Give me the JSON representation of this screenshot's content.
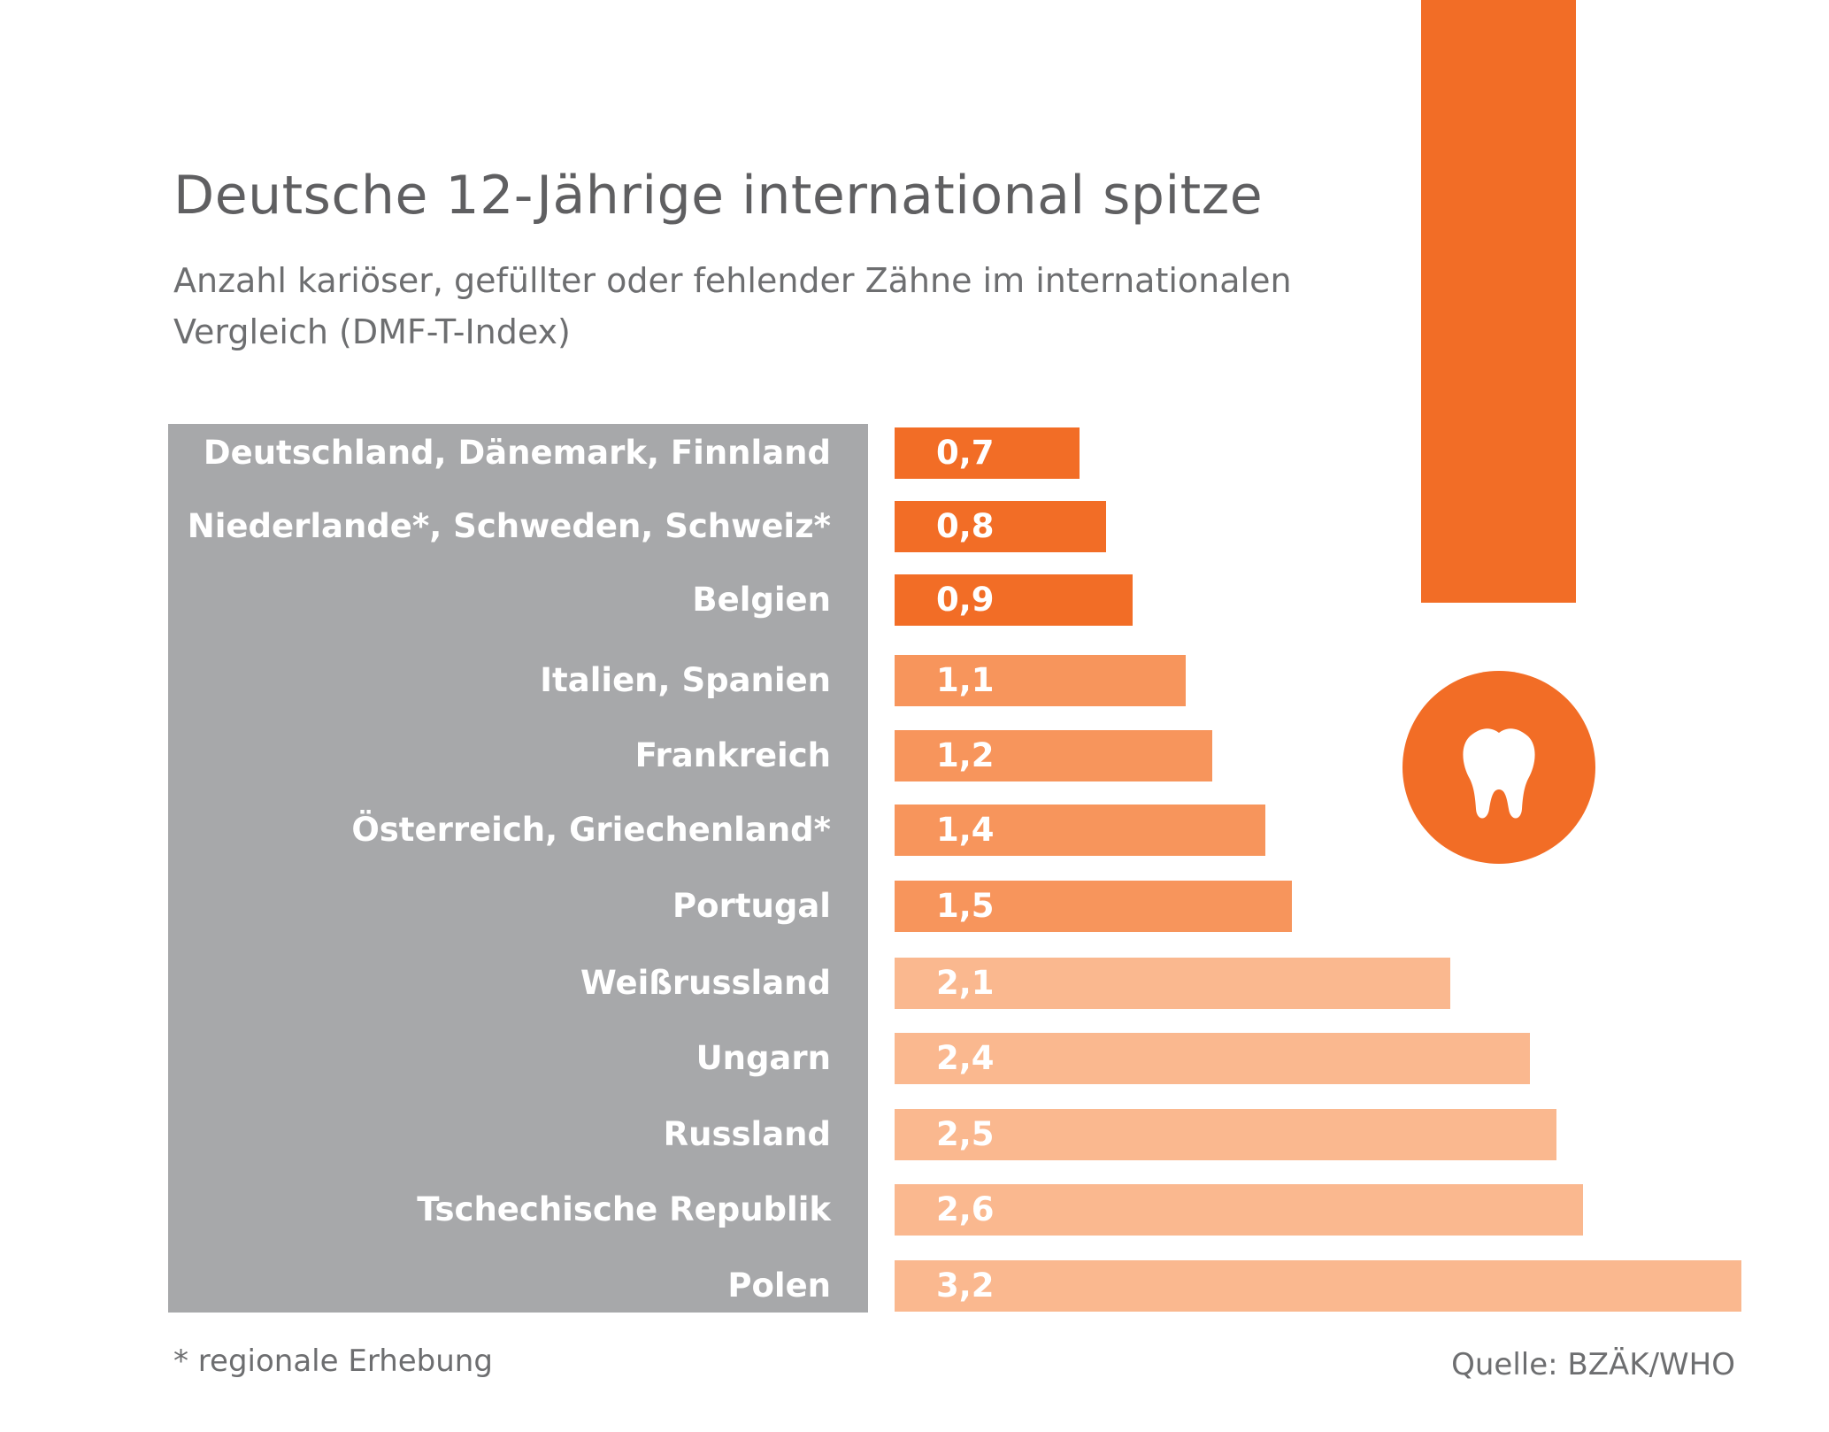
{
  "chart_data": {
    "type": "bar",
    "orientation": "horizontal",
    "title": "Deutsche 12-Jährige international spitze",
    "subtitle": "Anzahl kariöser, gefüllter oder fehlender Zähne im internationalen Vergleich (DMF-T-Index)",
    "categories": [
      "Deutschland, Dänemark, Finnland",
      "Niederlande*, Schweden, Schweiz*",
      "Belgien",
      "Italien, Spanien",
      "Frankreich",
      "Österreich, Griechenland*",
      "Portugal",
      "Weißrussland",
      "Ungarn",
      "Russland",
      "Tschechische Republik",
      "Polen"
    ],
    "values": [
      0.7,
      0.8,
      0.9,
      1.1,
      1.2,
      1.4,
      1.5,
      2.1,
      2.4,
      2.5,
      2.6,
      3.2
    ],
    "value_labels": [
      "0,7",
      "0,8",
      "0,9",
      "1,1",
      "1,2",
      "1,4",
      "1,5",
      "2,1",
      "2,4",
      "2,5",
      "2,6",
      "3,2"
    ],
    "bar_colors": [
      "#f26d26",
      "#f26d26",
      "#f26d26",
      "#f7955c",
      "#f7955c",
      "#f7955c",
      "#f7955c",
      "#fab88f",
      "#fab88f",
      "#fab88f",
      "#fab88f",
      "#fab88f"
    ],
    "xlim": [
      0,
      3.2
    ],
    "grid": false,
    "legend": "none"
  },
  "footnote": "* regionale Erhebung",
  "source": "Quelle: BZÄK/WHO",
  "colors": {
    "accent": "#f26d26",
    "mid": "#f7955c",
    "light": "#fab88f",
    "label_panel": "#a7a8aa",
    "text": "#5f5f61"
  },
  "icons": {
    "tooth": "tooth-icon"
  }
}
